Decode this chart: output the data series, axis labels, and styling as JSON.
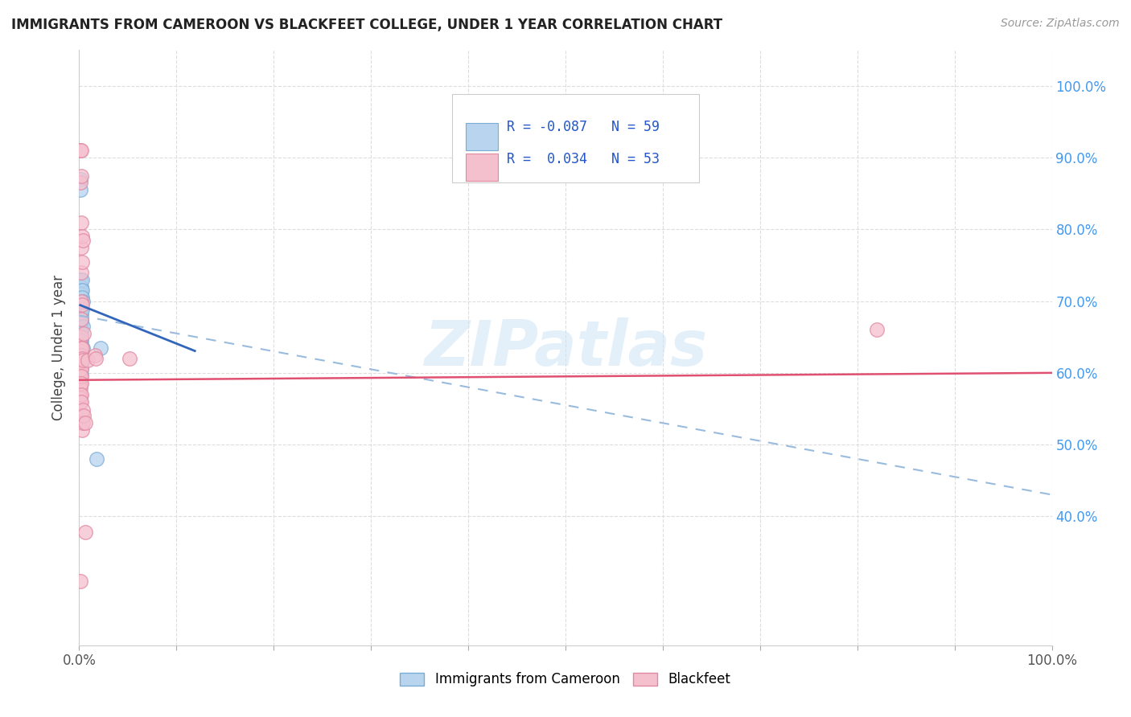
{
  "title": "IMMIGRANTS FROM CAMEROON VS BLACKFEET COLLEGE, UNDER 1 YEAR CORRELATION CHART",
  "source": "Source: ZipAtlas.com",
  "ylabel": "College, Under 1 year",
  "watermark": "ZIPatlas",
  "color_blue_face": "#b8d4ee",
  "color_blue_edge": "#7aadd4",
  "color_pink_face": "#f5c0ce",
  "color_pink_edge": "#e088a0",
  "trendline_blue_solid": "#3366bb",
  "trendline_blue_dashed": "#99bbdd",
  "trendline_pink_solid": "#e05070",
  "blue_points": [
    [
      0.001,
      0.87
    ],
    [
      0.001,
      0.855
    ],
    [
      0.001,
      0.73
    ],
    [
      0.001,
      0.72
    ],
    [
      0.001,
      0.715
    ],
    [
      0.001,
      0.71
    ],
    [
      0.001,
      0.7
    ],
    [
      0.001,
      0.695
    ],
    [
      0.001,
      0.69
    ],
    [
      0.001,
      0.685
    ],
    [
      0.001,
      0.68
    ],
    [
      0.001,
      0.678
    ],
    [
      0.001,
      0.675
    ],
    [
      0.001,
      0.673
    ],
    [
      0.001,
      0.67
    ],
    [
      0.001,
      0.665
    ],
    [
      0.001,
      0.663
    ],
    [
      0.001,
      0.66
    ],
    [
      0.001,
      0.658
    ],
    [
      0.001,
      0.655
    ],
    [
      0.001,
      0.653
    ],
    [
      0.001,
      0.65
    ],
    [
      0.001,
      0.648
    ],
    [
      0.001,
      0.645
    ],
    [
      0.001,
      0.643
    ],
    [
      0.001,
      0.64
    ],
    [
      0.001,
      0.638
    ],
    [
      0.001,
      0.635
    ],
    [
      0.002,
      0.72
    ],
    [
      0.002,
      0.715
    ],
    [
      0.002,
      0.71
    ],
    [
      0.002,
      0.7
    ],
    [
      0.002,
      0.695
    ],
    [
      0.002,
      0.69
    ],
    [
      0.002,
      0.68
    ],
    [
      0.002,
      0.675
    ],
    [
      0.002,
      0.67
    ],
    [
      0.002,
      0.66
    ],
    [
      0.002,
      0.655
    ],
    [
      0.002,
      0.65
    ],
    [
      0.002,
      0.645
    ],
    [
      0.002,
      0.638
    ],
    [
      0.002,
      0.635
    ],
    [
      0.002,
      0.63
    ],
    [
      0.002,
      0.625
    ],
    [
      0.002,
      0.62
    ],
    [
      0.002,
      0.615
    ],
    [
      0.002,
      0.61
    ],
    [
      0.002,
      0.605
    ],
    [
      0.002,
      0.598
    ],
    [
      0.003,
      0.73
    ],
    [
      0.003,
      0.715
    ],
    [
      0.003,
      0.705
    ],
    [
      0.003,
      0.688
    ],
    [
      0.004,
      0.7
    ],
    [
      0.004,
      0.665
    ],
    [
      0.004,
      0.635
    ],
    [
      0.018,
      0.48
    ],
    [
      0.022,
      0.635
    ]
  ],
  "pink_points": [
    [
      0.001,
      0.91
    ],
    [
      0.001,
      0.865
    ],
    [
      0.001,
      0.636
    ],
    [
      0.001,
      0.63
    ],
    [
      0.001,
      0.625
    ],
    [
      0.001,
      0.62
    ],
    [
      0.001,
      0.615
    ],
    [
      0.001,
      0.61
    ],
    [
      0.001,
      0.605
    ],
    [
      0.001,
      0.6
    ],
    [
      0.001,
      0.593
    ],
    [
      0.001,
      0.585
    ],
    [
      0.001,
      0.578
    ],
    [
      0.001,
      0.57
    ],
    [
      0.001,
      0.565
    ],
    [
      0.001,
      0.56
    ],
    [
      0.001,
      0.31
    ],
    [
      0.002,
      0.91
    ],
    [
      0.002,
      0.875
    ],
    [
      0.002,
      0.81
    ],
    [
      0.002,
      0.775
    ],
    [
      0.002,
      0.74
    ],
    [
      0.002,
      0.7
    ],
    [
      0.002,
      0.675
    ],
    [
      0.002,
      0.65
    ],
    [
      0.002,
      0.635
    ],
    [
      0.002,
      0.625
    ],
    [
      0.002,
      0.615
    ],
    [
      0.002,
      0.605
    ],
    [
      0.002,
      0.595
    ],
    [
      0.002,
      0.585
    ],
    [
      0.002,
      0.57
    ],
    [
      0.002,
      0.56
    ],
    [
      0.003,
      0.79
    ],
    [
      0.003,
      0.755
    ],
    [
      0.003,
      0.695
    ],
    [
      0.003,
      0.635
    ],
    [
      0.003,
      0.62
    ],
    [
      0.003,
      0.54
    ],
    [
      0.003,
      0.52
    ],
    [
      0.004,
      0.785
    ],
    [
      0.004,
      0.618
    ],
    [
      0.004,
      0.548
    ],
    [
      0.004,
      0.53
    ],
    [
      0.005,
      0.655
    ],
    [
      0.005,
      0.54
    ],
    [
      0.006,
      0.53
    ],
    [
      0.006,
      0.378
    ],
    [
      0.009,
      0.618
    ],
    [
      0.016,
      0.625
    ],
    [
      0.017,
      0.62
    ],
    [
      0.052,
      0.62
    ],
    [
      0.82,
      0.66
    ]
  ],
  "blue_solid_trend_x": [
    0.0,
    0.12
  ],
  "blue_solid_trend_y": [
    0.695,
    0.63
  ],
  "blue_dashed_trend_x": [
    0.0,
    1.0
  ],
  "blue_dashed_trend_y": [
    0.68,
    0.43
  ],
  "pink_trend_x": [
    0.0,
    1.0
  ],
  "pink_trend_y": [
    0.59,
    0.6
  ],
  "yticks": [
    0.4,
    0.5,
    0.6,
    0.7,
    0.8,
    0.9,
    1.0
  ],
  "ytick_labels_right": [
    "40.0%",
    "50.0%",
    "60.0%",
    "70.0%",
    "80.0%",
    "90.0%",
    "100.0%"
  ],
  "xtick_positions": [
    0.0,
    0.1,
    0.2,
    0.3,
    0.4,
    0.5,
    0.6,
    0.7,
    0.8,
    0.9,
    1.0
  ],
  "xlim": [
    0.0,
    1.0
  ],
  "ylim": [
    0.22,
    1.05
  ],
  "tick_color_blue": "#4499ee",
  "grid_color": "#dddddd",
  "grid_style": "--"
}
